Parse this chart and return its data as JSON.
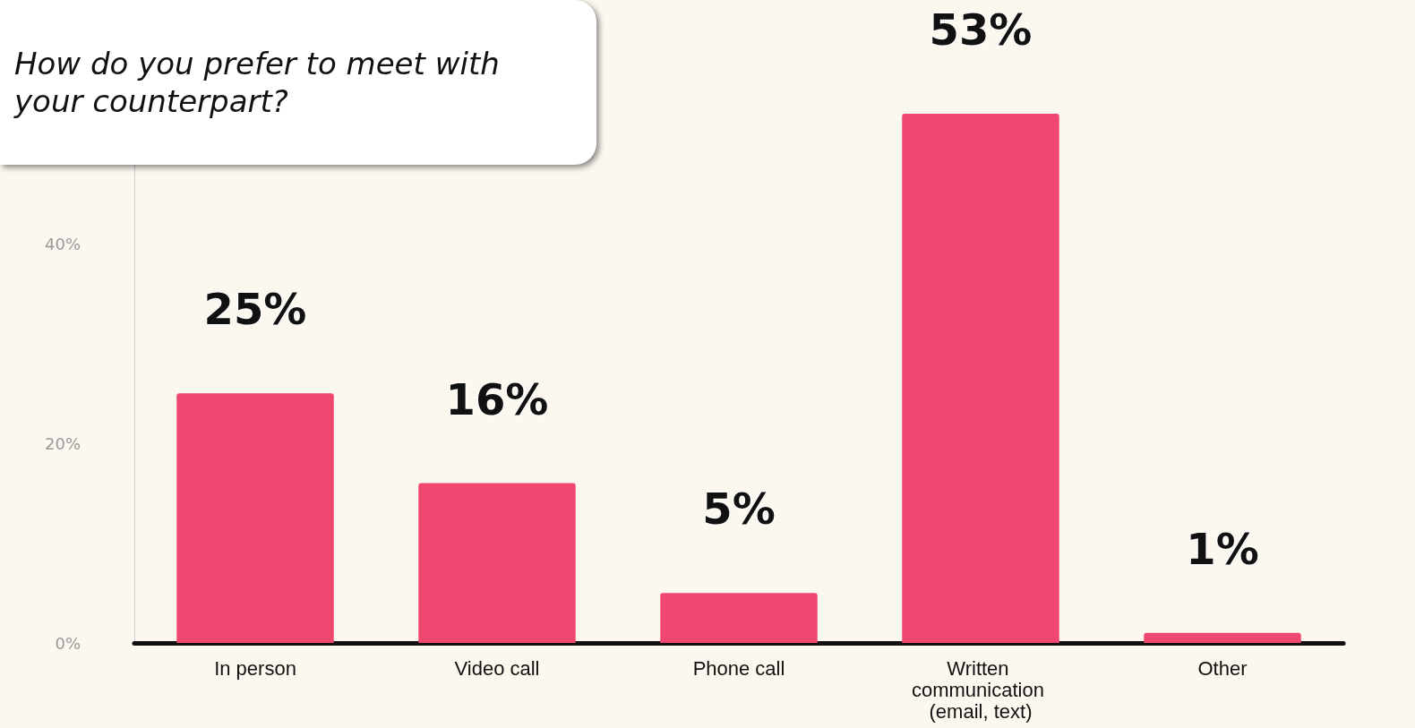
{
  "chart_data": {
    "type": "bar",
    "title": "How do you prefer to meet with your counterpart?",
    "categories": [
      "In person",
      "Video call",
      "Phone call",
      "Written communication (email, text)",
      "Other"
    ],
    "values": [
      25,
      16,
      5,
      53,
      1
    ],
    "color": "#ef476f",
    "ylim": [
      0,
      60
    ],
    "yticks": [
      {
        "value": 0,
        "label": "0%"
      },
      {
        "value": 20,
        "label": "20%"
      },
      {
        "value": 40,
        "label": "40%"
      }
    ],
    "value_labels": [
      "25%",
      "16%",
      "5%",
      "53%",
      "1%"
    ],
    "grid": false
  }
}
